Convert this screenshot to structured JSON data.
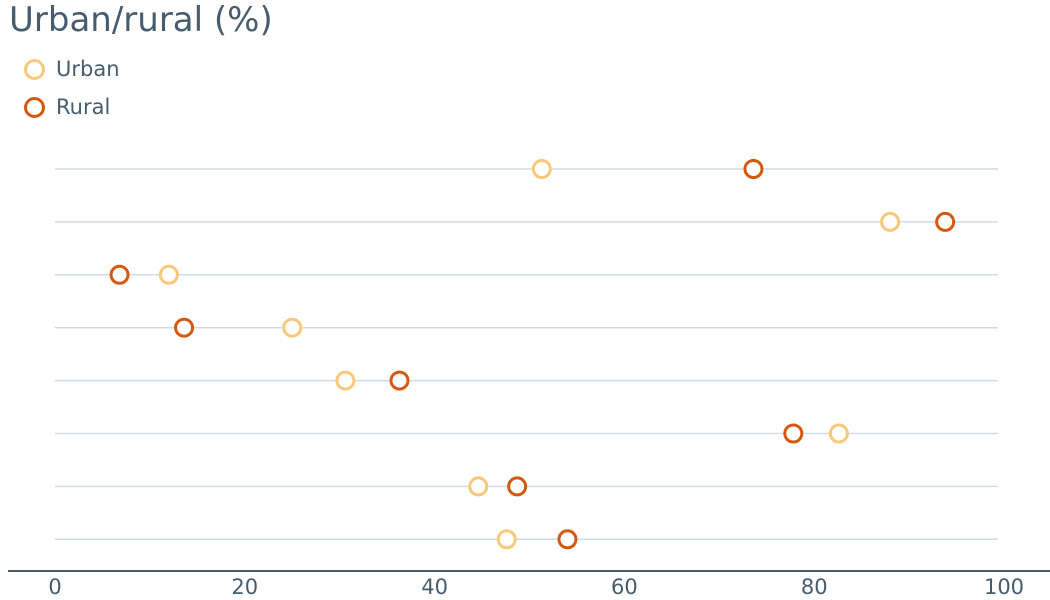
{
  "chart_data": {
    "type": "scatter",
    "title": "Urban/rural (%)",
    "xlabel": "",
    "ylabel": "",
    "xlim": [
      0,
      100
    ],
    "x_ticks": [
      "0",
      "20",
      "40",
      "60",
      "80",
      "100"
    ],
    "rows": 8,
    "grid": true,
    "legend_position": "top-left",
    "series": [
      {
        "name": "Urban",
        "color": "#f9c87a",
        "values": [
          51.3,
          88.0,
          12.0,
          25.0,
          30.6,
          82.6,
          44.6,
          47.6
        ]
      },
      {
        "name": "Rural",
        "color": "#d4590f",
        "values": [
          73.6,
          93.8,
          6.8,
          13.6,
          36.3,
          77.8,
          48.7,
          54.0
        ]
      }
    ]
  }
}
